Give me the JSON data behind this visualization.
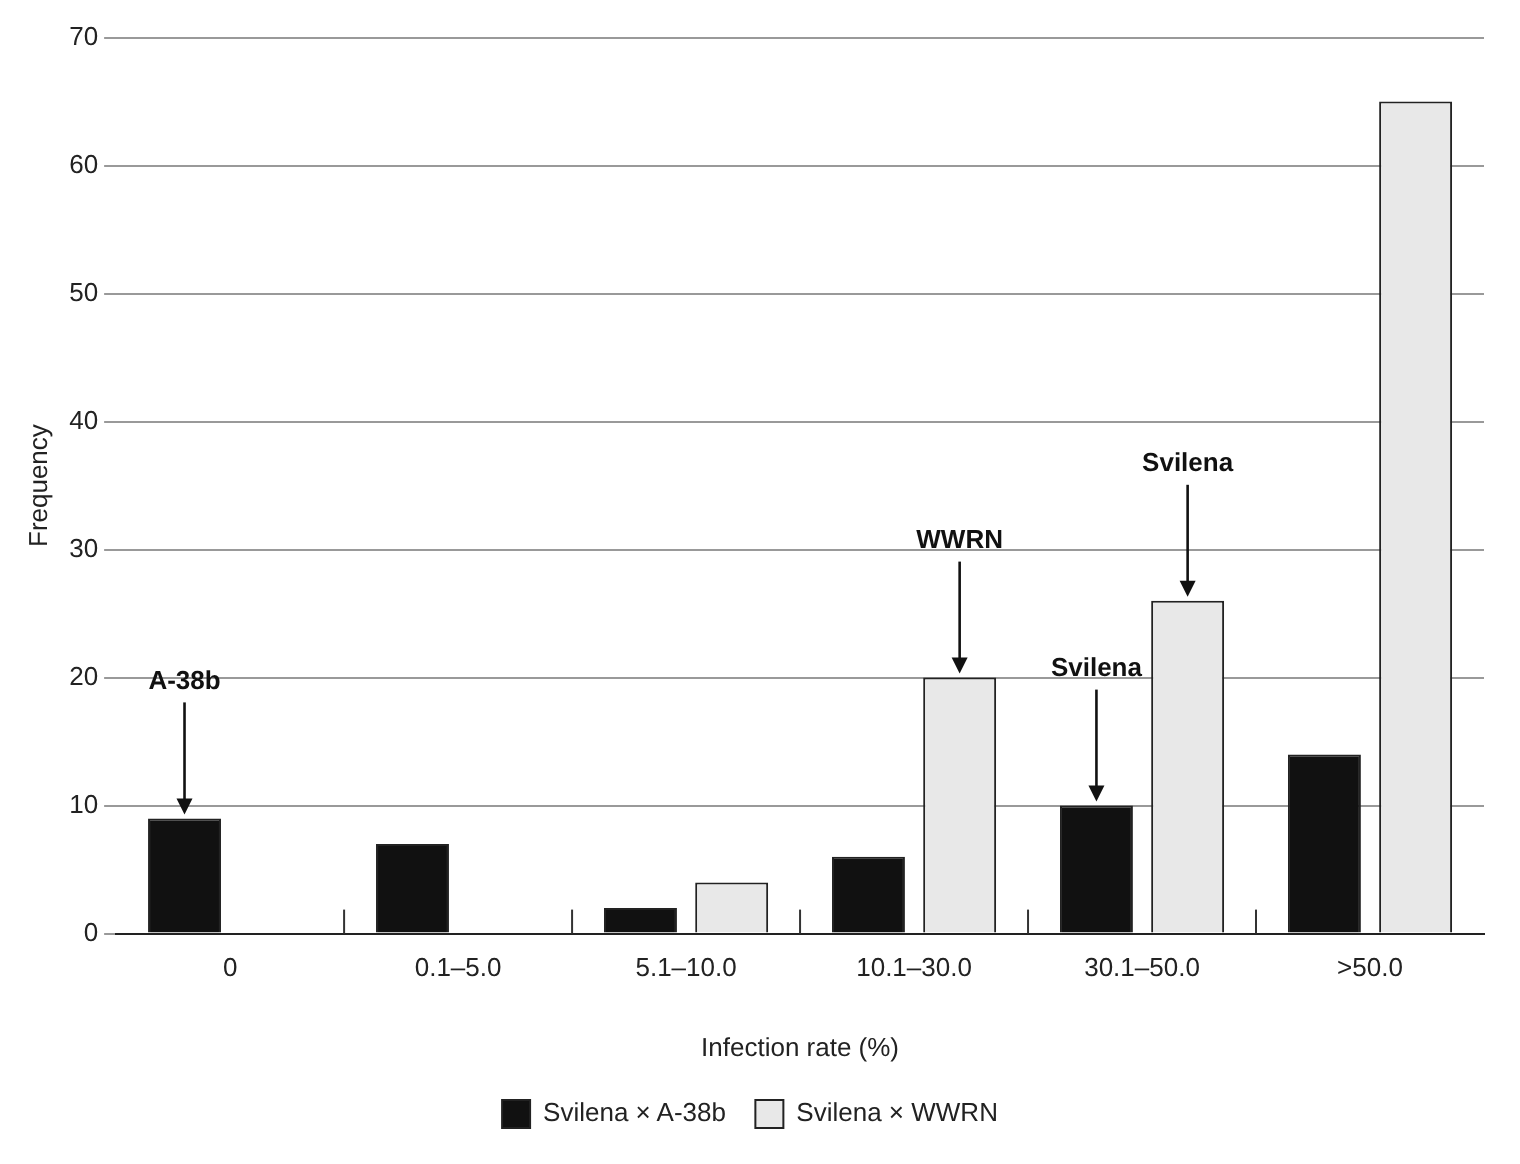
{
  "chart_data": {
    "type": "bar",
    "xlabel": "Infection rate (%)",
    "ylabel": "Frequency",
    "categories": [
      "0",
      "0.1–5.0",
      "5.1–10.0",
      "10.1–30.0",
      "30.1–50.0",
      ">50.0"
    ],
    "series": [
      {
        "name": "Svilena × A-38b",
        "color": "#111111",
        "values": [
          9,
          7,
          2,
          6,
          10,
          14
        ]
      },
      {
        "name": "Svilena × WWRN",
        "color": "#e8e8e8",
        "values": [
          0,
          0,
          4,
          20,
          26,
          65
        ]
      }
    ],
    "ylim": [
      0,
      70
    ],
    "yticks": [
      0,
      10,
      20,
      30,
      40,
      50,
      60,
      70
    ],
    "grid": "y",
    "legend": "bottom",
    "annotations": [
      {
        "text": "A-38b",
        "y": 9
      },
      {
        "text": "WWRN",
        "y": 20
      },
      {
        "text": "Svilena",
        "y": 10
      },
      {
        "text": "Svilena",
        "y": 26
      }
    ]
  }
}
